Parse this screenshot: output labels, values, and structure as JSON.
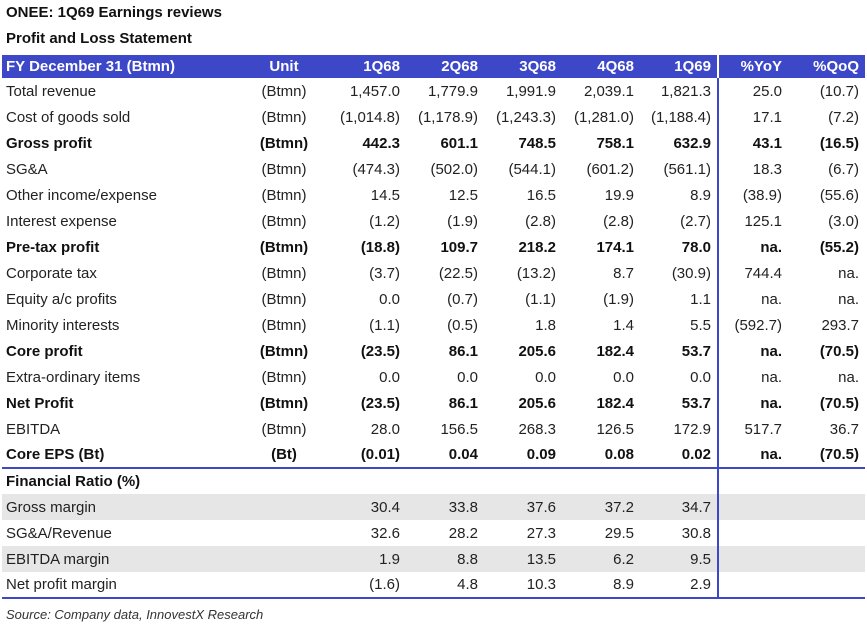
{
  "title": "ONEE: 1Q69 Earnings reviews",
  "subtitle": "Profit and Loss Statement",
  "header": [
    "FY December 31 (Btmn)",
    "Unit",
    "1Q68",
    "2Q68",
    "3Q68",
    "4Q68",
    "1Q69",
    "%YoY",
    "%QoQ"
  ],
  "rows": [
    {
      "label": "Total revenue",
      "unit": "(Btmn)",
      "values": [
        "1,457.0",
        "1,779.9",
        "1,991.9",
        "2,039.1",
        "1,821.3",
        "25.0",
        "(10.7)"
      ],
      "bold": false
    },
    {
      "label": "Cost of goods sold",
      "unit": "(Btmn)",
      "values": [
        "(1,014.8)",
        "(1,178.9)",
        "(1,243.3)",
        "(1,281.0)",
        "(1,188.4)",
        "17.1",
        "(7.2)"
      ],
      "bold": false
    },
    {
      "label": "Gross profit",
      "unit": "(Btmn)",
      "values": [
        "442.3",
        "601.1",
        "748.5",
        "758.1",
        "632.9",
        "43.1",
        "(16.5)"
      ],
      "bold": true
    },
    {
      "label": "SG&A",
      "unit": "(Btmn)",
      "values": [
        "(474.3)",
        "(502.0)",
        "(544.1)",
        "(601.2)",
        "(561.1)",
        "18.3",
        "(6.7)"
      ],
      "bold": false
    },
    {
      "label": "Other income/expense",
      "unit": "(Btmn)",
      "values": [
        "14.5",
        "12.5",
        "16.5",
        "19.9",
        "8.9",
        "(38.9)",
        "(55.6)"
      ],
      "bold": false
    },
    {
      "label": "Interest expense",
      "unit": "(Btmn)",
      "values": [
        "(1.2)",
        "(1.9)",
        "(2.8)",
        "(2.8)",
        "(2.7)",
        "125.1",
        "(3.0)"
      ],
      "bold": false
    },
    {
      "label": "Pre-tax profit",
      "unit": "(Btmn)",
      "values": [
        "(18.8)",
        "109.7",
        "218.2",
        "174.1",
        "78.0",
        "na.",
        "(55.2)"
      ],
      "bold": true
    },
    {
      "label": "Corporate tax",
      "unit": "(Btmn)",
      "values": [
        "(3.7)",
        "(22.5)",
        "(13.2)",
        "8.7",
        "(30.9)",
        "744.4",
        "na."
      ],
      "bold": false
    },
    {
      "label": "Equity a/c profits",
      "unit": "(Btmn)",
      "values": [
        "0.0",
        "(0.7)",
        "(1.1)",
        "(1.9)",
        "1.1",
        "na.",
        "na."
      ],
      "bold": false
    },
    {
      "label": "Minority interests",
      "unit": "(Btmn)",
      "values": [
        "(1.1)",
        "(0.5)",
        "1.8",
        "1.4",
        "5.5",
        "(592.7)",
        "293.7"
      ],
      "bold": false
    },
    {
      "label": "Core profit",
      "unit": "(Btmn)",
      "values": [
        "(23.5)",
        "86.1",
        "205.6",
        "182.4",
        "53.7",
        "na.",
        "(70.5)"
      ],
      "bold": true
    },
    {
      "label": "Extra-ordinary items",
      "unit": "(Btmn)",
      "values": [
        "0.0",
        "0.0",
        "0.0",
        "0.0",
        "0.0",
        "na.",
        "na."
      ],
      "bold": false
    },
    {
      "label": "Net Profit",
      "unit": "(Btmn)",
      "values": [
        "(23.5)",
        "86.1",
        "205.6",
        "182.4",
        "53.7",
        "na.",
        "(70.5)"
      ],
      "bold": true
    },
    {
      "label": "EBITDA",
      "unit": "(Btmn)",
      "values": [
        "28.0",
        "156.5",
        "268.3",
        "126.5",
        "172.9",
        "517.7",
        "36.7"
      ],
      "bold": false
    },
    {
      "label": "Core EPS (Bt)",
      "unit": "(Bt)",
      "values": [
        "(0.01)",
        "0.04",
        "0.09",
        "0.08",
        "0.02",
        "na.",
        "(70.5)"
      ],
      "bold": true
    }
  ],
  "ratio_title": "Financial Ratio (%)",
  "ratios": [
    {
      "label": "Gross margin",
      "values": [
        "30.4",
        "33.8",
        "37.6",
        "37.2",
        "34.7"
      ]
    },
    {
      "label": "SG&A/Revenue",
      "values": [
        "32.6",
        "28.2",
        "27.3",
        "29.5",
        "30.8"
      ]
    },
    {
      "label": "EBITDA margin",
      "values": [
        "1.9",
        "8.8",
        "13.5",
        "6.2",
        "9.5"
      ]
    },
    {
      "label": "Net profit margin",
      "values": [
        "(1.6)",
        "4.8",
        "10.3",
        "8.9",
        "2.9"
      ]
    }
  ],
  "source": "Source: Company data, InnovestX Research",
  "colors": {
    "accent": "#3d48c9",
    "shade": "#e6e6e6"
  }
}
